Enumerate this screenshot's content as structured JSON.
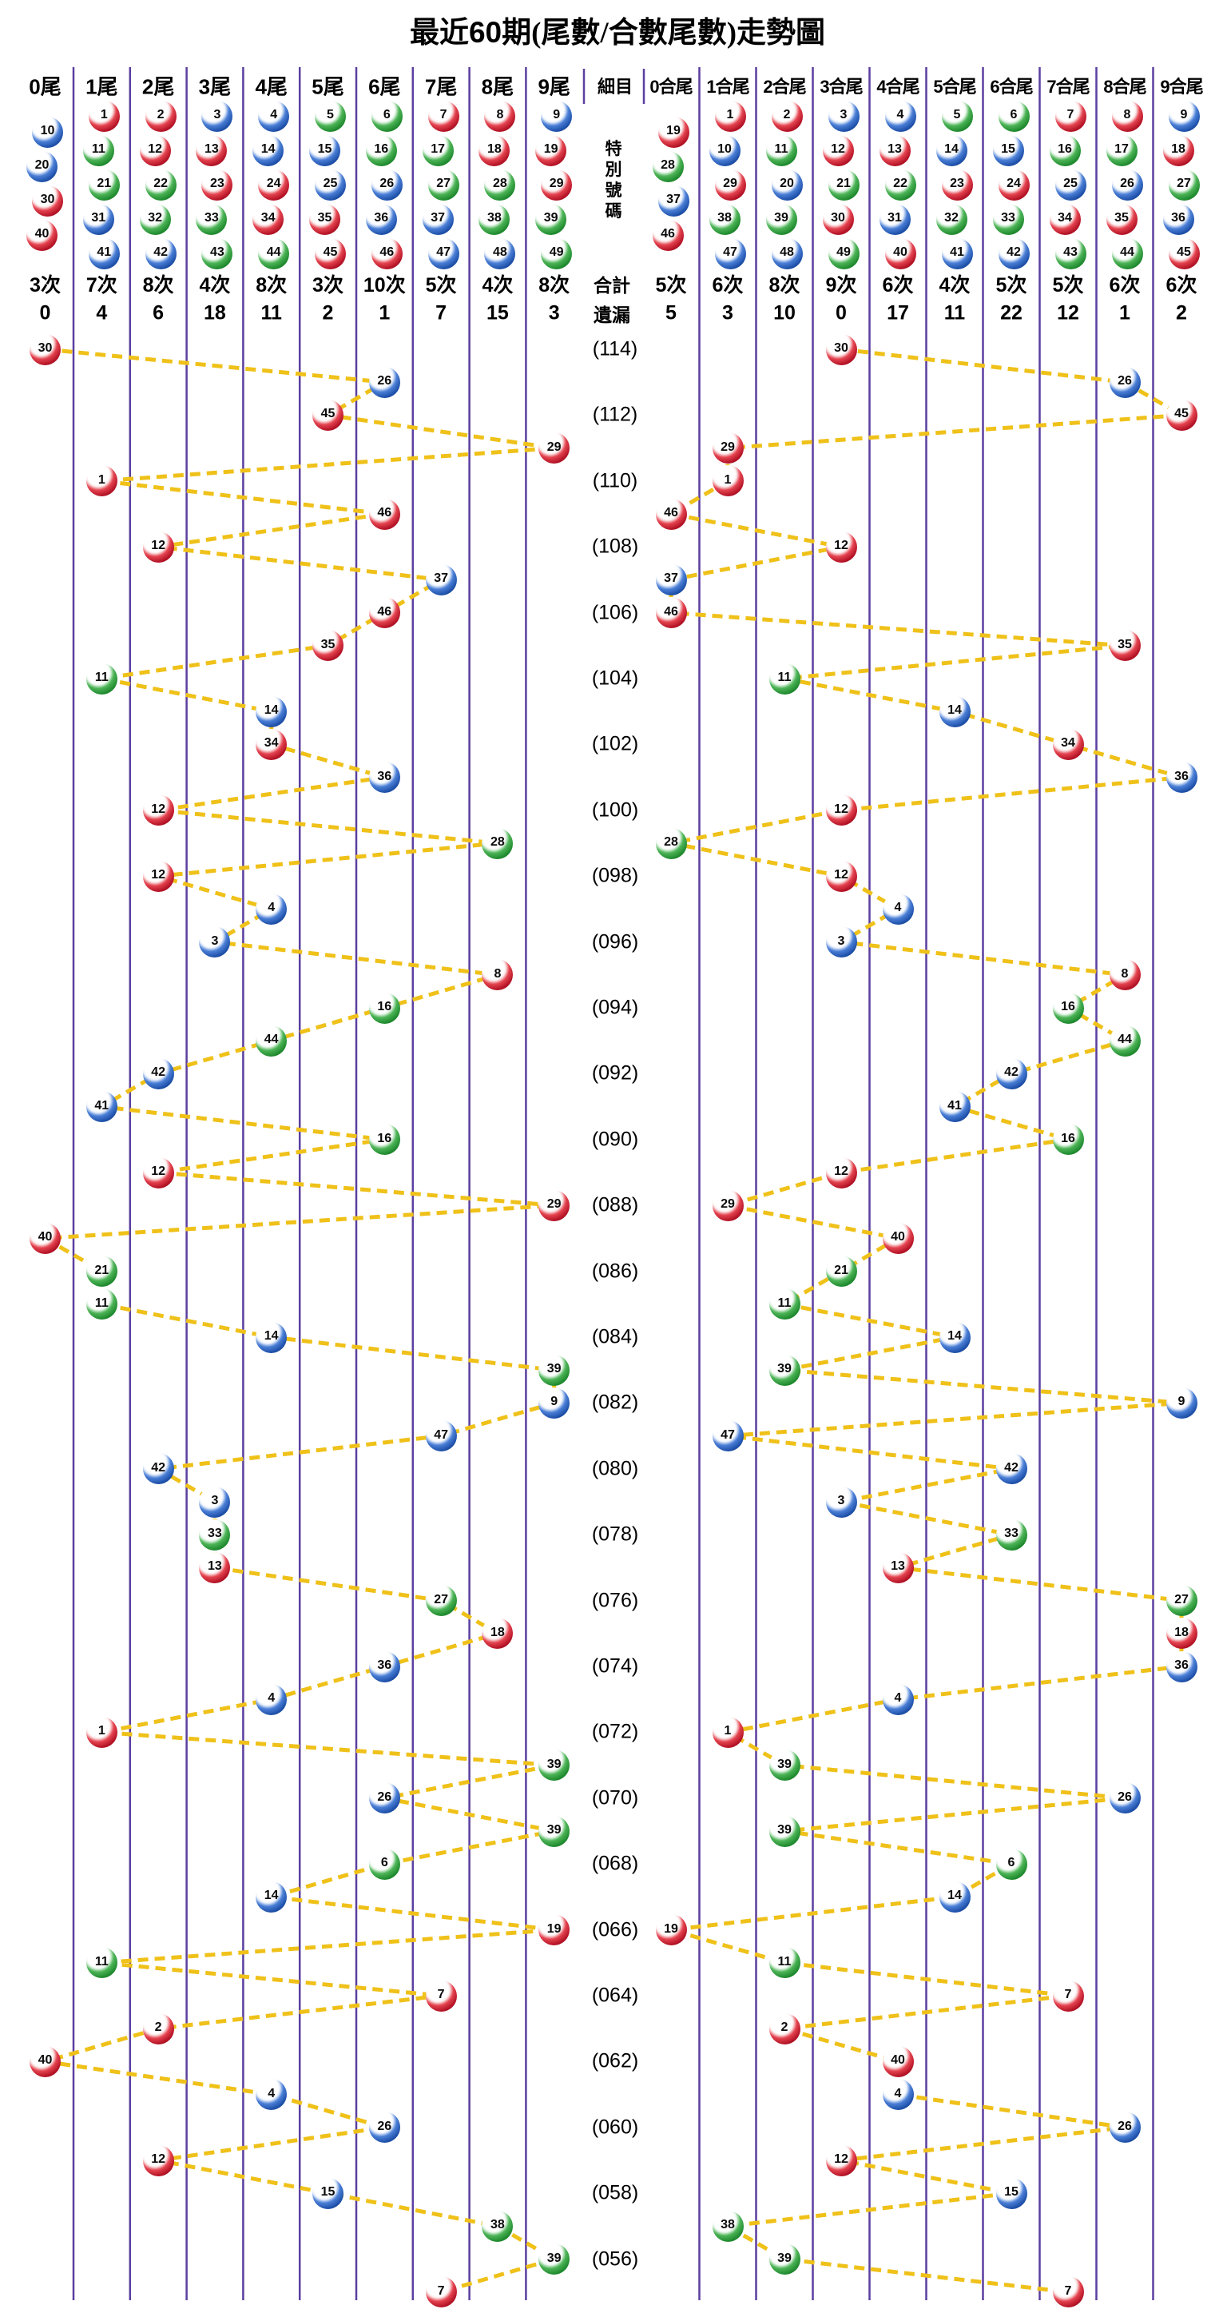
{
  "title": {
    "pre": "最近",
    "num": "60",
    "post": "期(尾數/合數尾數)走勢圖"
  },
  "left_columns": [
    {
      "label": "0尾",
      "balls": [
        10,
        20,
        30,
        40
      ],
      "count": "3次",
      "miss": "0"
    },
    {
      "label": "1尾",
      "balls": [
        1,
        11,
        21,
        31,
        41
      ],
      "count": "7次",
      "miss": "4"
    },
    {
      "label": "2尾",
      "balls": [
        2,
        12,
        22,
        32,
        42
      ],
      "count": "8次",
      "miss": "6"
    },
    {
      "label": "3尾",
      "balls": [
        3,
        13,
        23,
        33,
        43
      ],
      "count": "4次",
      "miss": "18"
    },
    {
      "label": "4尾",
      "balls": [
        4,
        14,
        24,
        34,
        44
      ],
      "count": "8次",
      "miss": "11"
    },
    {
      "label": "5尾",
      "balls": [
        5,
        15,
        25,
        35,
        45
      ],
      "count": "3次",
      "miss": "2"
    },
    {
      "label": "6尾",
      "balls": [
        6,
        16,
        26,
        36,
        46
      ],
      "count": "10次",
      "miss": "1"
    },
    {
      "label": "7尾",
      "balls": [
        7,
        17,
        27,
        37,
        47
      ],
      "count": "5次",
      "miss": "7"
    },
    {
      "label": "8尾",
      "balls": [
        8,
        18,
        28,
        38,
        48
      ],
      "count": "4次",
      "miss": "15"
    },
    {
      "label": "9尾",
      "balls": [
        9,
        19,
        29,
        39,
        49
      ],
      "count": "8次",
      "miss": "3"
    }
  ],
  "middle": {
    "header": "細目",
    "special": [
      "特",
      "別",
      "號",
      "碼"
    ],
    "total": "合計",
    "miss": "遺漏"
  },
  "right_columns": [
    {
      "label": "0合尾",
      "balls": [
        19,
        28,
        37,
        46
      ],
      "count": "5次",
      "miss": "5"
    },
    {
      "label": "1合尾",
      "balls": [
        1,
        10,
        29,
        38,
        47
      ],
      "count": "6次",
      "miss": "3"
    },
    {
      "label": "2合尾",
      "balls": [
        2,
        11,
        20,
        39,
        48
      ],
      "count": "8次",
      "miss": "10"
    },
    {
      "label": "3合尾",
      "balls": [
        3,
        12,
        21,
        30,
        49
      ],
      "count": "9次",
      "miss": "0"
    },
    {
      "label": "4合尾",
      "balls": [
        4,
        13,
        22,
        31,
        40
      ],
      "count": "6次",
      "miss": "17"
    },
    {
      "label": "5合尾",
      "balls": [
        5,
        14,
        23,
        32,
        41
      ],
      "count": "4次",
      "miss": "11"
    },
    {
      "label": "6合尾",
      "balls": [
        6,
        15,
        24,
        33,
        42
      ],
      "count": "5次",
      "miss": "22"
    },
    {
      "label": "7合尾",
      "balls": [
        7,
        16,
        25,
        34,
        43
      ],
      "count": "5次",
      "miss": "12"
    },
    {
      "label": "8合尾",
      "balls": [
        8,
        17,
        26,
        35,
        44
      ],
      "count": "6次",
      "miss": "1"
    },
    {
      "label": "9合尾",
      "balls": [
        9,
        18,
        27,
        36,
        45
      ],
      "count": "6次",
      "miss": "2"
    }
  ],
  "chart_data": {
    "type": "scatter",
    "title": "最近60期(尾數/合數尾數)走勢圖",
    "legend_position": "none",
    "grid": "vertical-lines",
    "left_axis_categories": [
      "0尾",
      "1尾",
      "2尾",
      "3尾",
      "4尾",
      "5尾",
      "6尾",
      "7尾",
      "8尾",
      "9尾"
    ],
    "right_axis_categories": [
      "0合尾",
      "1合尾",
      "2合尾",
      "3合尾",
      "4合尾",
      "5合尾",
      "6合尾",
      "7合尾",
      "8合尾",
      "9合尾"
    ],
    "rows": [
      [
        "(114)",
        30
      ],
      [
        "",
        26
      ],
      [
        "(112)",
        45
      ],
      [
        "",
        29
      ],
      [
        "(110)",
        1
      ],
      [
        "",
        46
      ],
      [
        "(108)",
        12
      ],
      [
        "",
        37
      ],
      [
        "(106)",
        46
      ],
      [
        "",
        35
      ],
      [
        "(104)",
        11
      ],
      [
        "",
        14
      ],
      [
        "(102)",
        34
      ],
      [
        "",
        36
      ],
      [
        "(100)",
        12
      ],
      [
        "",
        28
      ],
      [
        "(098)",
        12
      ],
      [
        "",
        4
      ],
      [
        "(096)",
        3
      ],
      [
        "",
        8
      ],
      [
        "(094)",
        16
      ],
      [
        "",
        44
      ],
      [
        "(092)",
        42
      ],
      [
        "",
        41
      ],
      [
        "(090)",
        16
      ],
      [
        "",
        12
      ],
      [
        "(088)",
        29
      ],
      [
        "",
        40
      ],
      [
        "(086)",
        21
      ],
      [
        "",
        11
      ],
      [
        "(084)",
        14
      ],
      [
        "",
        39
      ],
      [
        "(082)",
        9
      ],
      [
        "",
        47
      ],
      [
        "(080)",
        42
      ],
      [
        "",
        3
      ],
      [
        "(078)",
        33
      ],
      [
        "",
        13
      ],
      [
        "(076)",
        27
      ],
      [
        "",
        18
      ],
      [
        "(074)",
        36
      ],
      [
        "",
        4
      ],
      [
        "(072)",
        1
      ],
      [
        "",
        39
      ],
      [
        "(070)",
        26
      ],
      [
        "",
        39
      ],
      [
        "(068)",
        6
      ],
      [
        "",
        14
      ],
      [
        "(066)",
        19
      ],
      [
        "",
        11
      ],
      [
        "(064)",
        7
      ],
      [
        "",
        2
      ],
      [
        "(062)",
        40
      ],
      [
        "",
        4
      ],
      [
        "(060)",
        26
      ],
      [
        "",
        12
      ],
      [
        "(058)",
        15
      ],
      [
        "",
        38
      ],
      [
        "(056)",
        39
      ],
      [
        "",
        7
      ]
    ]
  },
  "ball_color_groups": {
    "red": [
      1,
      2,
      7,
      8,
      12,
      13,
      18,
      19,
      23,
      24,
      29,
      30,
      34,
      35,
      40,
      45,
      46
    ],
    "blue": [
      3,
      4,
      9,
      10,
      14,
      15,
      20,
      25,
      26,
      31,
      36,
      37,
      41,
      42,
      47,
      48
    ],
    "green": [
      5,
      6,
      11,
      16,
      17,
      21,
      22,
      27,
      28,
      32,
      33,
      38,
      39,
      43,
      44,
      49
    ]
  },
  "colors": {
    "red": "#b31225",
    "blue": "#1d4fa8",
    "green": "#1f8a2e",
    "trend_line": "#efc119",
    "grid_line": "#5b3fa0",
    "text": "#000000"
  }
}
